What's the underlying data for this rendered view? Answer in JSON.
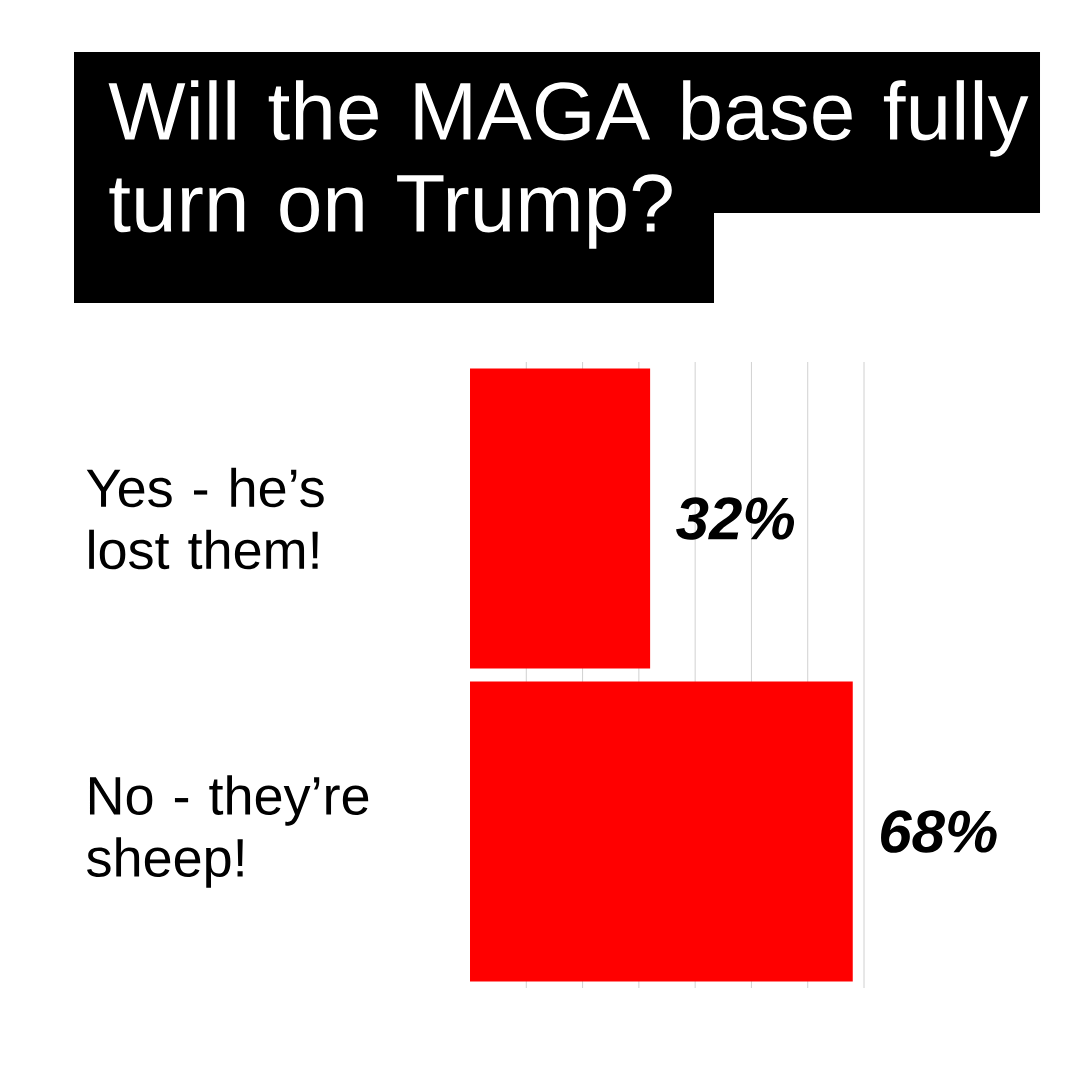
{
  "chart_data": {
    "type": "bar",
    "orientation": "horizontal",
    "title": "Will the MAGA base fully turn on Trump?",
    "categories": [
      "Yes - he’s lost them!",
      "No - they’re sheep!"
    ],
    "values": [
      32,
      68
    ],
    "value_labels": [
      "32%",
      "68%"
    ],
    "color": "#ff0000",
    "xlim": [
      0,
      70
    ],
    "xticks": [
      {
        "value": 10,
        "label": null
      },
      {
        "value": 20,
        "label": null
      },
      {
        "value": 30,
        "label": null
      },
      {
        "value": 40,
        "label": null
      },
      {
        "value": 50,
        "label": null
      },
      {
        "value": 60,
        "label": null
      },
      {
        "value": 70,
        "label": null
      }
    ],
    "grid": "x",
    "tick_labels": "y"
  }
}
